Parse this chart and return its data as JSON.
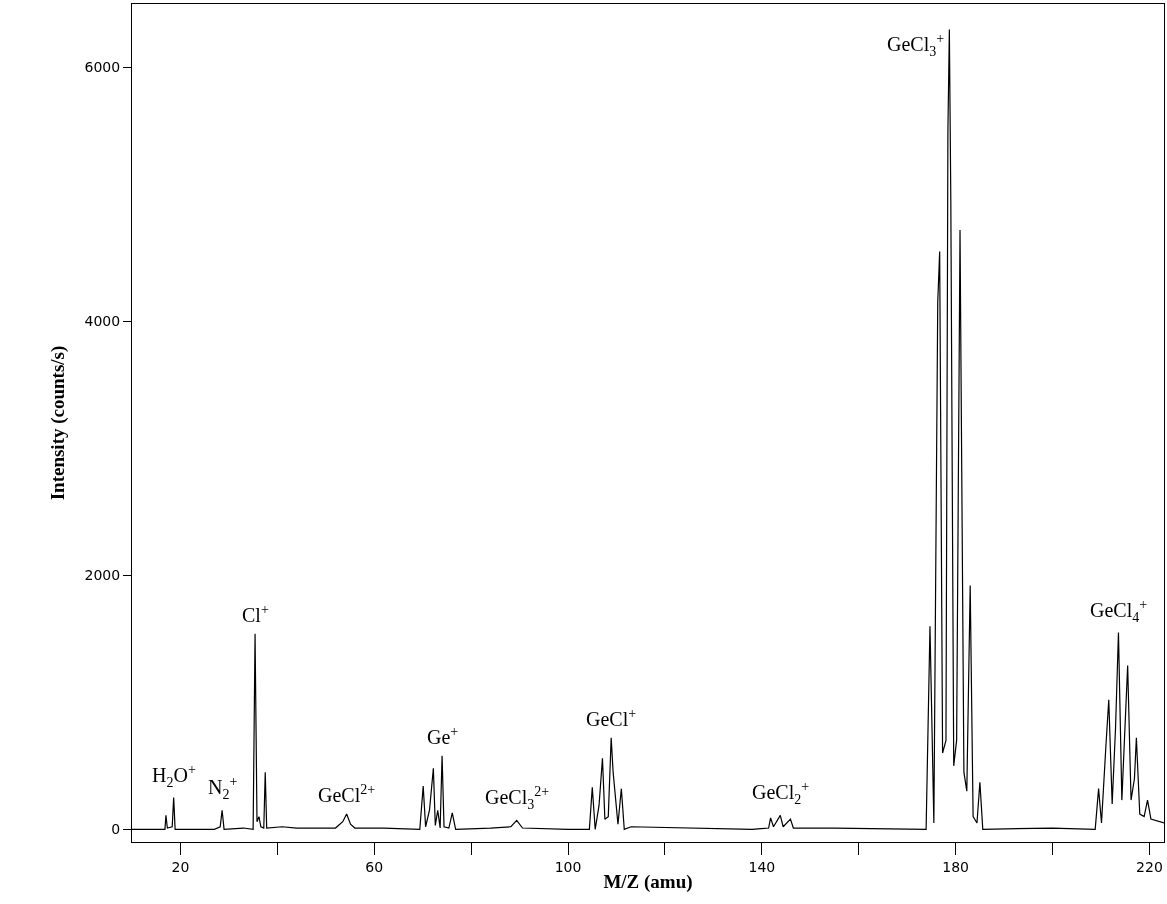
{
  "chart_data": {
    "type": "line",
    "xlabel": "M/Z (amu)",
    "ylabel": "Intensity (counts/s)",
    "xlim": [
      10,
      223
    ],
    "ylim": [
      -100,
      6500
    ],
    "xticks": [
      20,
      {
        "value": 40,
        "label": null
      },
      60,
      {
        "value": 80,
        "label": null
      },
      100,
      {
        "value": 120,
        "label": null
      },
      140,
      {
        "value": 160,
        "label": null
      },
      180,
      {
        "value": 200,
        "label": null
      },
      220
    ],
    "yticks": [
      0,
      2000,
      4000,
      6000
    ],
    "marker": "none",
    "line_style": "solid",
    "series": [
      {
        "color": "#000000",
        "x": [
          10,
          16.8,
          17,
          17.3,
          18.3,
          18.6,
          18.9,
          27,
          28.2,
          28.6,
          29,
          33,
          35,
          35.4,
          35.8,
          36.2,
          36.6,
          37.2,
          37.5,
          37.8,
          41,
          44,
          52,
          53.5,
          54.3,
          55.1,
          56,
          62,
          69.4,
          70.1,
          70.6,
          71.4,
          72.2,
          72.6,
          73.1,
          73.6,
          74.0,
          74.4,
          75.4,
          76.1,
          76.8,
          84,
          88.2,
          89.4,
          90.6,
          100,
          104.4,
          105.0,
          105.6,
          106.4,
          107.1,
          107.6,
          108.3,
          108.9,
          109.3,
          110.3,
          111,
          111.6,
          113,
          138,
          141.4,
          141.8,
          142.4,
          143.8,
          144.4,
          145.9,
          146.5,
          155,
          173.9,
          174.7,
          175.5,
          176.3,
          176.7,
          177.3,
          178,
          178.4,
          178.7,
          179,
          179.6,
          180.2,
          180.9,
          181.7,
          182.3,
          183,
          183.6,
          184.4,
          185,
          185.6,
          200,
          208.8,
          209.5,
          210.1,
          211,
          211.6,
          212.3,
          213,
          213.6,
          214.3,
          215,
          215.5,
          216.2,
          216.9,
          217.3,
          218,
          218.9,
          219.6,
          220.3,
          223
        ],
        "values": [
          0,
          0,
          110,
          10,
          20,
          250,
          0,
          0,
          20,
          150,
          0,
          10,
          0,
          1540,
          60,
          100,
          20,
          10,
          450,
          10,
          20,
          10,
          10,
          60,
          120,
          40,
          10,
          10,
          0,
          340,
          20,
          150,
          480,
          30,
          150,
          10,
          580,
          20,
          10,
          130,
          0,
          10,
          20,
          70,
          10,
          0,
          0,
          330,
          0,
          190,
          560,
          80,
          100,
          720,
          450,
          40,
          320,
          0,
          20,
          0,
          10,
          90,
          20,
          110,
          20,
          80,
          10,
          10,
          0,
          1600,
          50,
          4150,
          4550,
          600,
          700,
          5500,
          6300,
          4950,
          500,
          700,
          4720,
          450,
          300,
          1920,
          100,
          50,
          370,
          0,
          10,
          0,
          320,
          50,
          650,
          1020,
          200,
          800,
          1550,
          230,
          850,
          1290,
          230,
          400,
          720,
          120,
          100,
          230,
          80,
          50
        ]
      }
    ],
    "annotations": [
      {
        "text": "H$_{2}$O$^{+}$",
        "x": 18.6,
        "y": 250
      },
      {
        "text": "N$_{2}$$^{+}$",
        "x": 28.6,
        "y": 150
      },
      {
        "text": "Cl$^{+}$",
        "x": 35.4,
        "y": 1540
      },
      {
        "text": "GeCl$^{2+}$",
        "x": 54.3,
        "y": 120
      },
      {
        "text": "Ge$^{+}$",
        "x": 74.0,
        "y": 580
      },
      {
        "text": "GeCl$_{3}$$^{2+}$",
        "x": 89.4,
        "y": 70
      },
      {
        "text": "GeCl$^{+}$",
        "x": 108.9,
        "y": 720
      },
      {
        "text": "GeCl$_{2}$$^{+}$",
        "x": 143.8,
        "y": 110
      },
      {
        "text": "GeCl$_{3}$$^{+}$",
        "x": 178.7,
        "y": 6300
      },
      {
        "text": "GeCl$_{4}$$^{+}$",
        "x": 213.6,
        "y": 1550
      }
    ]
  }
}
